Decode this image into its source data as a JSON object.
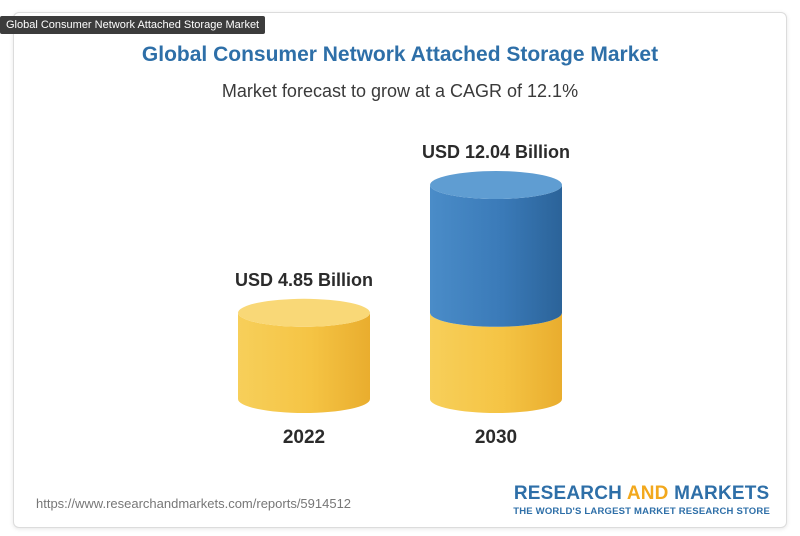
{
  "tooltip": "Global Consumer Network Attached Storage Market",
  "header": {
    "title": "Global Consumer Network Attached Storage Market",
    "subtitle": "Market forecast to grow at a CAGR of 12.1%"
  },
  "chart_data": {
    "type": "bar",
    "categories": [
      "2022",
      "2030"
    ],
    "values": [
      4.85,
      12.04
    ],
    "value_labels": [
      "USD 4.85 Billion",
      "USD 12.04 Billion"
    ],
    "unit": "USD Billion",
    "title": "Global Consumer Network Attached Storage Market",
    "subtitle": "Market forecast to grow at a CAGR of 12.1%",
    "grid": false,
    "colors": {
      "base": "#f5c444",
      "growth": "#3a7ab8"
    }
  },
  "footer": {
    "source": "https://www.researchandmarkets.com/reports/5914512",
    "logo_part1": "RESEARCH",
    "logo_part2": "AND",
    "logo_part3": "MARKETS",
    "tagline": "THE WORLD'S LARGEST MARKET RESEARCH STORE"
  }
}
